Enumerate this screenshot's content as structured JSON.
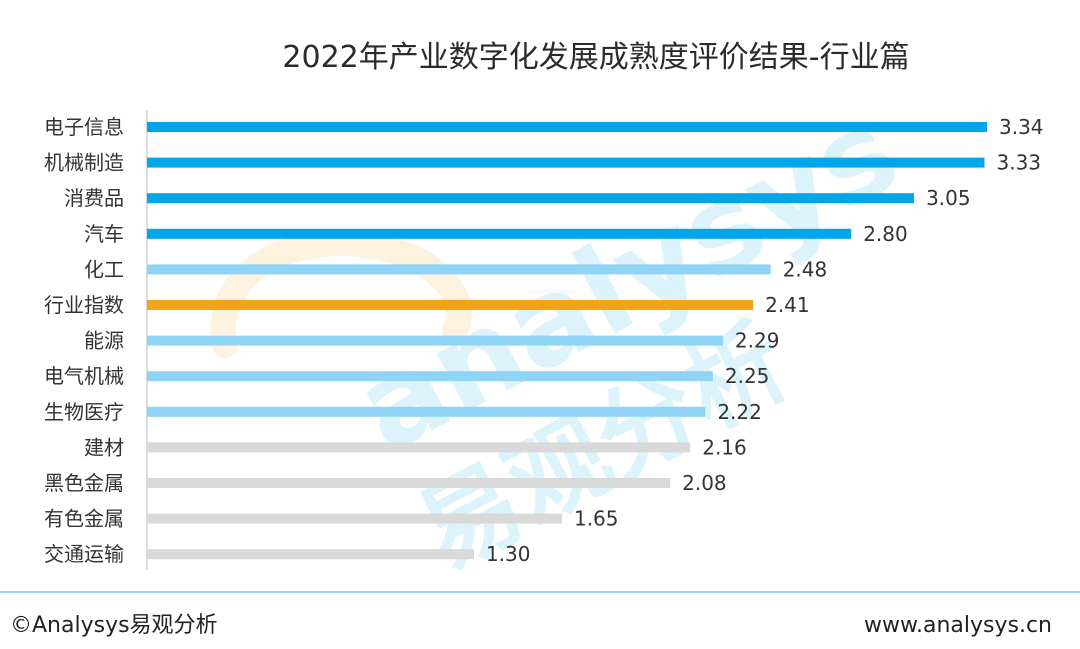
{
  "chart_data": {
    "type": "bar",
    "orientation": "horizontal",
    "title": "2022年产业数字化发展成熟度评价结果-行业篇",
    "categories": [
      "电子信息",
      "机械制造",
      "消费品",
      "汽车",
      "化工",
      "行业指数",
      "能源",
      "电气机械",
      "生物医疗",
      "建材",
      "黑色金属",
      "有色金属",
      "交通运输"
    ],
    "values": [
      3.34,
      3.33,
      3.05,
      2.8,
      2.48,
      2.41,
      2.29,
      2.25,
      2.22,
      2.16,
      2.08,
      1.65,
      1.3
    ],
    "value_labels": [
      "3.34",
      "3.33",
      "3.05",
      "2.80",
      "2.48",
      "2.41",
      "2.29",
      "2.25",
      "2.22",
      "2.16",
      "2.08",
      "1.65",
      "1.30"
    ],
    "bar_colors": [
      "#00a6e8",
      "#00a6e8",
      "#00a6e8",
      "#00a6e8",
      "#8fd4f5",
      "#f5a21b",
      "#8fd4f5",
      "#8fd4f5",
      "#8fd4f5",
      "#d9d9d9",
      "#d9d9d9",
      "#d9d9d9",
      "#d9d9d9"
    ],
    "xlim": [
      0,
      3.34
    ],
    "grid": false,
    "legend": "none"
  },
  "footer": {
    "source": "©Analysys易观分析",
    "url": "www.analysys.cn"
  },
  "watermark": {
    "latin": "analysys",
    "chinese": "易观分析"
  }
}
